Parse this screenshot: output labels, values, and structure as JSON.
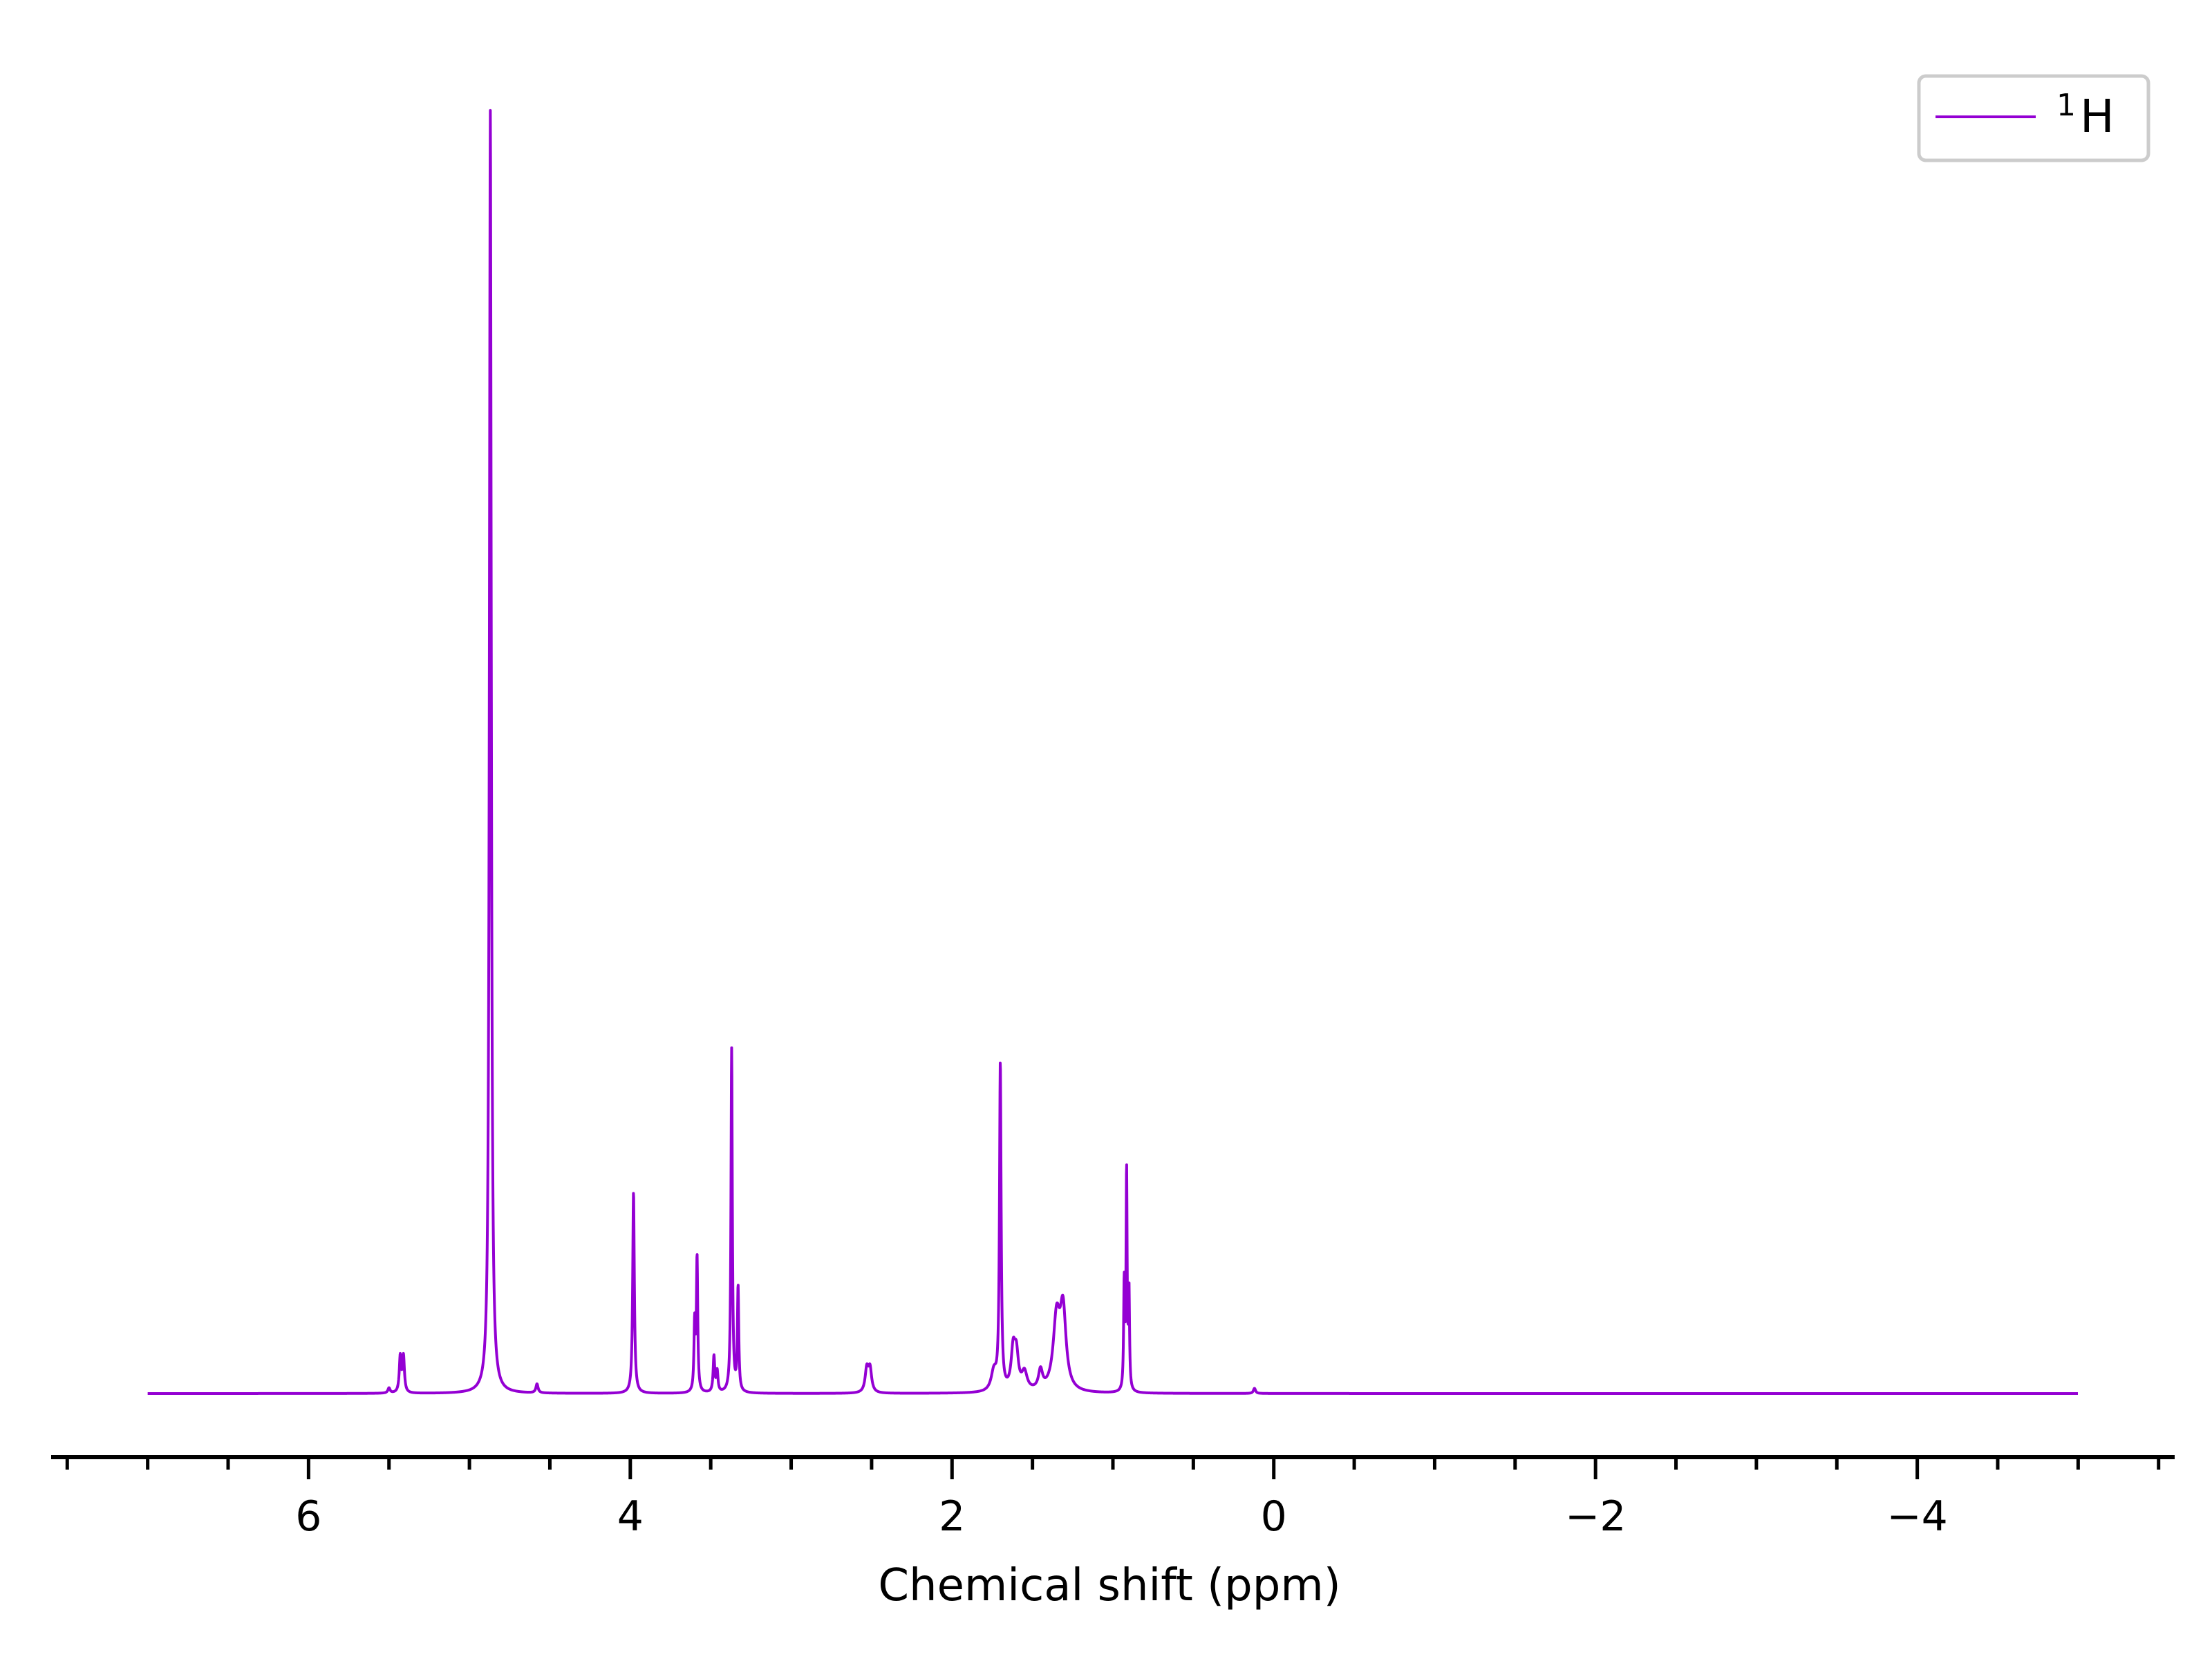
{
  "chart_data": {
    "type": "line",
    "title": "",
    "xlabel": "Chemical shift (ppm)",
    "ylabel": "",
    "x_inverted": true,
    "xlim": [
      7.6,
      -5.6
    ],
    "ylim": [
      -0.05,
      1.02
    ],
    "grid": false,
    "legend_position": "top-right",
    "line_color": "#9400d3",
    "x_ticks": [
      {
        "value": 6,
        "label": "6"
      },
      {
        "value": 4,
        "label": "4"
      },
      {
        "value": 2,
        "label": "2"
      },
      {
        "value": 0,
        "label": "0"
      },
      {
        "value": -2,
        "label": "−2"
      },
      {
        "value": -4,
        "label": "−4"
      }
    ],
    "minor_tick_step": 0.5,
    "series": [
      {
        "name": "¹H",
        "legend_main": "H",
        "legend_sup": "1",
        "x_range": [
          7.0,
          -5.0
        ],
        "peaks": [
          {
            "shift": 5.5,
            "height": 0.004,
            "width": 0.008
          },
          {
            "shift": 5.43,
            "height": 0.028,
            "width": 0.007
          },
          {
            "shift": 5.41,
            "height": 0.028,
            "width": 0.007
          },
          {
            "shift": 4.87,
            "height": 1.0,
            "width": 0.007
          },
          {
            "shift": 4.58,
            "height": 0.007,
            "width": 0.008
          },
          {
            "shift": 3.98,
            "height": 0.157,
            "width": 0.006
          },
          {
            "shift": 3.6,
            "height": 0.052,
            "width": 0.005
          },
          {
            "shift": 3.585,
            "height": 0.104,
            "width": 0.005
          },
          {
            "shift": 3.48,
            "height": 0.028,
            "width": 0.006
          },
          {
            "shift": 3.46,
            "height": 0.016,
            "width": 0.006
          },
          {
            "shift": 3.37,
            "height": 0.268,
            "width": 0.005
          },
          {
            "shift": 3.33,
            "height": 0.081,
            "width": 0.005
          },
          {
            "shift": 2.53,
            "height": 0.018,
            "width": 0.012
          },
          {
            "shift": 2.51,
            "height": 0.018,
            "width": 0.012
          },
          {
            "shift": 1.74,
            "height": 0.015,
            "width": 0.02
          },
          {
            "shift": 1.7,
            "height": 0.254,
            "width": 0.006
          },
          {
            "shift": 1.62,
            "height": 0.03,
            "width": 0.015
          },
          {
            "shift": 1.6,
            "height": 0.026,
            "width": 0.015
          },
          {
            "shift": 1.55,
            "height": 0.014,
            "width": 0.02
          },
          {
            "shift": 1.45,
            "height": 0.015,
            "width": 0.015
          },
          {
            "shift": 1.35,
            "height": 0.055,
            "width": 0.025
          },
          {
            "shift": 1.31,
            "height": 0.06,
            "width": 0.022
          },
          {
            "shift": 0.93,
            "height": 0.082,
            "width": 0.004
          },
          {
            "shift": 0.915,
            "height": 0.17,
            "width": 0.004
          },
          {
            "shift": 0.9,
            "height": 0.075,
            "width": 0.004
          },
          {
            "shift": 0.12,
            "height": 0.004,
            "width": 0.008
          }
        ]
      }
    ]
  }
}
